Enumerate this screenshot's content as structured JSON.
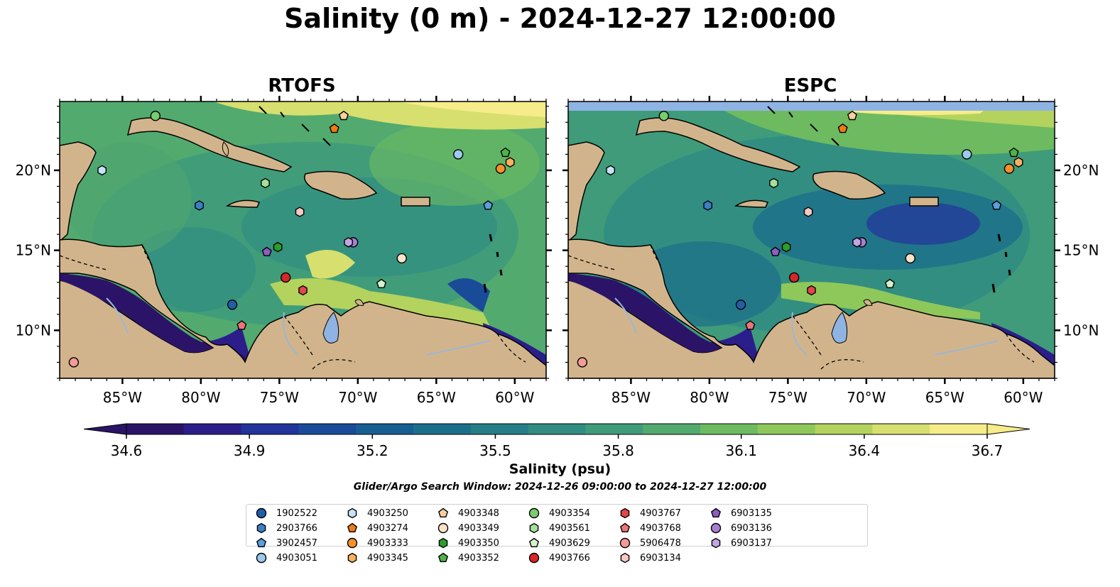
{
  "title": "Salinity (0 m) - 2024-12-27 12:00:00",
  "panels": [
    {
      "title": "RTOFS"
    },
    {
      "title": "ESPC"
    }
  ],
  "map": {
    "lon_range": [
      -89,
      -58
    ],
    "lat_range": [
      7,
      24.3
    ],
    "lon_ticks": [
      "85°W",
      "80°W",
      "75°W",
      "70°W",
      "65°W",
      "60°W"
    ],
    "lat_ticks": [
      "10°N",
      "15°N",
      "20°N"
    ],
    "land_color": "#d2b48c",
    "lake_color": "#8fb4e3"
  },
  "colorbar": {
    "label": "Salinity (psu)",
    "ticks": [
      "34.6",
      "34.9",
      "35.2",
      "35.5",
      "35.8",
      "36.1",
      "36.4",
      "36.7"
    ],
    "min": 34.6,
    "max": 36.7,
    "colormap": [
      "#2b1467",
      "#2c1e8a",
      "#23339c",
      "#1a4b98",
      "#165f92",
      "#1c6f8a",
      "#267e86",
      "#318d82",
      "#3f9b7a",
      "#52aa6f",
      "#6dba61",
      "#8fc85a",
      "#b3d35e",
      "#d7df6e",
      "#f6ec8a"
    ]
  },
  "search_window": "Glider/Argo Search Window: 2024-12-26 09:00:00 to 2024-12-27 12:00:00",
  "legend": [
    {
      "id": "1902522",
      "marker": "circle",
      "color": "#1f5fa8"
    },
    {
      "id": "2903766",
      "marker": "hexagon",
      "color": "#3c7fc6"
    },
    {
      "id": "3902457",
      "marker": "pentagon",
      "color": "#5aa0df"
    },
    {
      "id": "4903051",
      "marker": "circle",
      "color": "#9cc9ee"
    },
    {
      "id": "4903250",
      "marker": "hexagon",
      "color": "#c6e2f7"
    },
    {
      "id": "4903274",
      "marker": "pentagon",
      "color": "#f07b12"
    },
    {
      "id": "4903333",
      "marker": "circle",
      "color": "#f5902a"
    },
    {
      "id": "4903345",
      "marker": "hexagon",
      "color": "#f9b060"
    },
    {
      "id": "4903348",
      "marker": "pentagon",
      "color": "#fbcf9e"
    },
    {
      "id": "4903349",
      "marker": "circle",
      "color": "#fde2c8"
    },
    {
      "id": "4903350",
      "marker": "hexagon",
      "color": "#2a9d2a"
    },
    {
      "id": "4903352",
      "marker": "pentagon",
      "color": "#4fb348"
    },
    {
      "id": "4903354",
      "marker": "circle",
      "color": "#79cc6e"
    },
    {
      "id": "4903561",
      "marker": "hexagon",
      "color": "#a4e09a"
    },
    {
      "id": "4903629",
      "marker": "pentagon",
      "color": "#d2f2c8"
    },
    {
      "id": "4903766",
      "marker": "circle",
      "color": "#d62728"
    },
    {
      "id": "4903767",
      "marker": "hexagon",
      "color": "#e0474a"
    },
    {
      "id": "4903768",
      "marker": "pentagon",
      "color": "#ec7677"
    },
    {
      "id": "5906478",
      "marker": "circle",
      "color": "#f29b98"
    },
    {
      "id": "6903134",
      "marker": "hexagon",
      "color": "#f8c8c3"
    },
    {
      "id": "6903135",
      "marker": "pentagon",
      "color": "#8f5cc0"
    },
    {
      "id": "6903136",
      "marker": "circle",
      "color": "#a77fd1"
    },
    {
      "id": "6903137",
      "marker": "hexagon",
      "color": "#c4a5e3"
    }
  ],
  "floats": [
    {
      "id": "1902522",
      "lon": -78.0,
      "lat": 11.6
    },
    {
      "id": "2903766",
      "lon": -80.1,
      "lat": 17.8
    },
    {
      "id": "3902457",
      "lon": -61.7,
      "lat": 17.8
    },
    {
      "id": "4903051",
      "lon": -63.6,
      "lat": 21.0
    },
    {
      "id": "4903250",
      "lon": -86.3,
      "lat": 20.0
    },
    {
      "id": "4903274",
      "lon": -71.5,
      "lat": 22.6
    },
    {
      "id": "4903333",
      "lon": -60.9,
      "lat": 20.1
    },
    {
      "id": "4903345",
      "lon": -60.3,
      "lat": 20.5
    },
    {
      "id": "4903348",
      "lon": -70.9,
      "lat": 23.4
    },
    {
      "id": "4903349",
      "lon": -67.2,
      "lat": 14.5
    },
    {
      "id": "4903350",
      "lon": -75.1,
      "lat": 15.2
    },
    {
      "id": "4903352",
      "lon": -60.6,
      "lat": 21.1
    },
    {
      "id": "4903354",
      "lon": -82.9,
      "lat": 23.4
    },
    {
      "id": "4903561",
      "lon": -75.9,
      "lat": 19.2
    },
    {
      "id": "4903629",
      "lon": -68.5,
      "lat": 12.9
    },
    {
      "id": "4903766",
      "lon": -74.6,
      "lat": 13.3
    },
    {
      "id": "4903767",
      "lon": -73.5,
      "lat": 12.5
    },
    {
      "id": "4903768",
      "lon": -77.4,
      "lat": 10.3
    },
    {
      "id": "5906478",
      "lon": -88.1,
      "lat": 8.0
    },
    {
      "id": "6903134",
      "lon": -73.7,
      "lat": 17.4
    },
    {
      "id": "6903135",
      "lon": -75.8,
      "lat": 14.9
    },
    {
      "id": "6903136",
      "lon": -70.3,
      "lat": 15.5
    },
    {
      "id": "6903137",
      "lon": -70.6,
      "lat": 15.5
    }
  ]
}
